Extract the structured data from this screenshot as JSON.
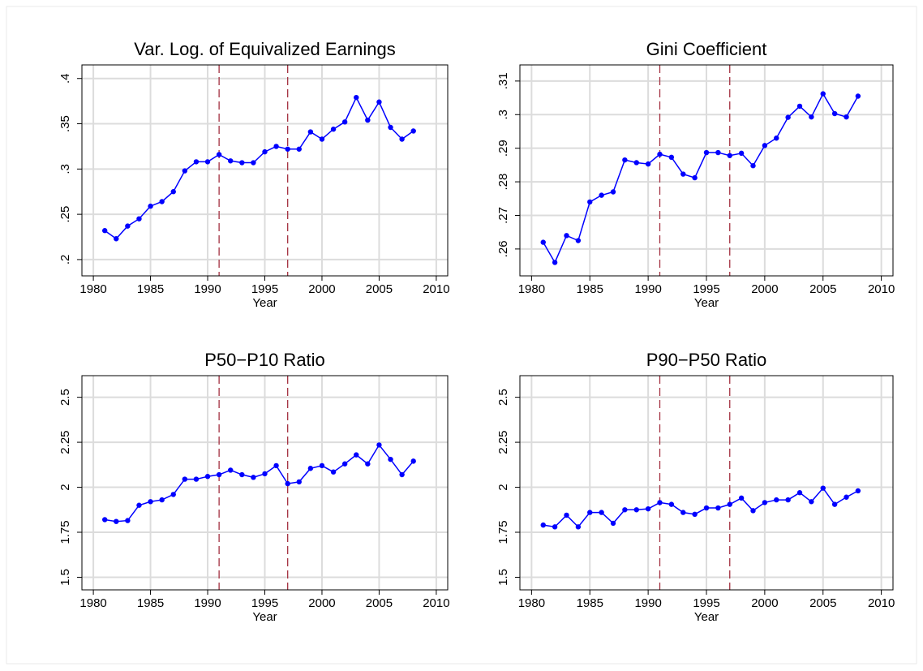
{
  "chart_data": [
    {
      "type": "line",
      "title": "Var. Log. of Equivalized Earnings",
      "x_label": "Year",
      "x": [
        1981,
        1982,
        1983,
        1984,
        1985,
        1986,
        1987,
        1988,
        1989,
        1990,
        1991,
        1992,
        1993,
        1994,
        1995,
        1996,
        1997,
        1998,
        1999,
        2000,
        2001,
        2002,
        2003,
        2004,
        2005,
        2006,
        2007,
        2008
      ],
      "values": [
        0.232,
        0.223,
        0.237,
        0.245,
        0.259,
        0.264,
        0.275,
        0.298,
        0.308,
        0.308,
        0.316,
        0.309,
        0.307,
        0.307,
        0.319,
        0.325,
        0.322,
        0.322,
        0.341,
        0.333,
        0.344,
        0.352,
        0.379,
        0.354,
        0.374,
        0.346,
        0.333,
        0.342
      ],
      "color": "#0000ff",
      "xlim": [
        1979,
        2011
      ],
      "xticks": [
        1980,
        1985,
        1990,
        1995,
        2000,
        2005,
        2010
      ],
      "ylim": [
        0.182,
        0.415
      ],
      "yticks": [
        {
          "value": 0.2,
          "label": ".2"
        },
        {
          "value": 0.25,
          "label": ".25"
        },
        {
          "value": 0.3,
          "label": ".3"
        },
        {
          "value": 0.35,
          "label": ".35"
        },
        {
          "value": 0.4,
          "label": ".4"
        }
      ],
      "vlines": [
        1991,
        1997
      ],
      "vline_color": "#a33040",
      "grid": true
    },
    {
      "type": "line",
      "title": "Gini Coefficient",
      "x_label": "Year",
      "x": [
        1981,
        1982,
        1983,
        1984,
        1985,
        1986,
        1987,
        1988,
        1989,
        1990,
        1991,
        1992,
        1993,
        1994,
        1995,
        1996,
        1997,
        1998,
        1999,
        2000,
        2001,
        2002,
        2003,
        2004,
        2005,
        2006,
        2007,
        2008
      ],
      "values": [
        0.262,
        0.256,
        0.264,
        0.2625,
        0.274,
        0.276,
        0.277,
        0.2865,
        0.2857,
        0.2853,
        0.2882,
        0.2873,
        0.2823,
        0.2812,
        0.2887,
        0.2887,
        0.2878,
        0.2885,
        0.2848,
        0.2908,
        0.293,
        0.2992,
        0.3025,
        0.2993,
        0.3062,
        0.3003,
        0.2993,
        0.3055
      ],
      "color": "#0000ff",
      "xlim": [
        1979,
        2011
      ],
      "xticks": [
        1980,
        1985,
        1990,
        1995,
        2000,
        2005,
        2010
      ],
      "ylim": [
        0.252,
        0.3148
      ],
      "yticks": [
        {
          "value": 0.26,
          "label": ".26"
        },
        {
          "value": 0.27,
          "label": ".27"
        },
        {
          "value": 0.28,
          "label": ".28"
        },
        {
          "value": 0.29,
          "label": ".29"
        },
        {
          "value": 0.3,
          "label": ".3"
        },
        {
          "value": 0.31,
          "label": ".31"
        }
      ],
      "vlines": [
        1991,
        1997
      ],
      "vline_color": "#a33040",
      "grid": true
    },
    {
      "type": "line",
      "title": "P50−P10 Ratio",
      "x_label": "Year",
      "x": [
        1981,
        1982,
        1983,
        1984,
        1985,
        1986,
        1987,
        1988,
        1989,
        1990,
        1991,
        1992,
        1993,
        1994,
        1995,
        1996,
        1997,
        1998,
        1999,
        2000,
        2001,
        2002,
        2003,
        2004,
        2005,
        2006,
        2007,
        2008
      ],
      "values": [
        1.82,
        1.81,
        1.815,
        1.9,
        1.92,
        1.93,
        1.96,
        2.045,
        2.045,
        2.06,
        2.07,
        2.095,
        2.07,
        2.055,
        2.075,
        2.12,
        2.02,
        2.03,
        2.105,
        2.12,
        2.085,
        2.13,
        2.18,
        2.13,
        2.235,
        2.155,
        2.07,
        2.145
      ],
      "color": "#0000ff",
      "xlim": [
        1979,
        2011
      ],
      "xticks": [
        1980,
        1985,
        1990,
        1995,
        2000,
        2005,
        2010
      ],
      "ylim": [
        1.43,
        2.62
      ],
      "yticks": [
        1.5,
        1.75,
        2,
        2.25,
        2.5
      ],
      "vlines": [
        1991,
        1997
      ],
      "vline_color": "#a33040",
      "grid": true
    },
    {
      "type": "line",
      "title": "P90−P50 Ratio",
      "x_label": "Year",
      "x": [
        1981,
        1982,
        1983,
        1984,
        1985,
        1986,
        1987,
        1988,
        1989,
        1990,
        1991,
        1992,
        1993,
        1994,
        1995,
        1996,
        1997,
        1998,
        1999,
        2000,
        2001,
        2002,
        2003,
        2004,
        2005,
        2006,
        2007,
        2008
      ],
      "values": [
        1.79,
        1.78,
        1.845,
        1.78,
        1.86,
        1.86,
        1.8,
        1.875,
        1.875,
        1.88,
        1.915,
        1.905,
        1.86,
        1.85,
        1.885,
        1.885,
        1.905,
        1.94,
        1.87,
        1.915,
        1.93,
        1.93,
        1.97,
        1.92,
        1.995,
        1.905,
        1.945,
        1.98
      ],
      "color": "#0000ff",
      "xlim": [
        1979,
        2011
      ],
      "xticks": [
        1980,
        1985,
        1990,
        1995,
        2000,
        2005,
        2010
      ],
      "ylim": [
        1.43,
        2.62
      ],
      "yticks": [
        1.5,
        1.75,
        2,
        2.25,
        2.5
      ],
      "vlines": [
        1991,
        1997
      ],
      "vline_color": "#a33040",
      "grid": true
    }
  ]
}
